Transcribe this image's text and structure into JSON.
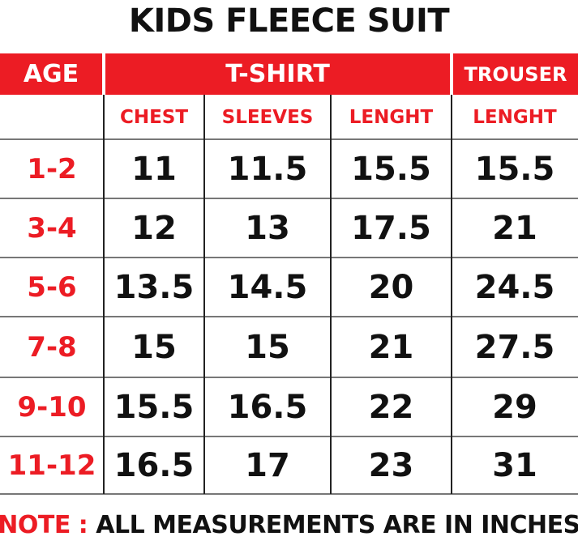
{
  "title": "KIDS FLEECE SUIT",
  "table": {
    "header": [
      "AGE",
      "T-SHIRT",
      "TROUSER"
    ],
    "subheader": [
      "CHEST",
      "SLEEVES",
      "LENGHT",
      "LENGHT"
    ],
    "rows": [
      [
        "1-2",
        "11",
        "11.5",
        "15.5",
        "15.5"
      ],
      [
        "3-4",
        "12",
        "13",
        "17.5",
        "21"
      ],
      [
        "5-6",
        "13.5",
        "14.5",
        "20",
        "24.5"
      ],
      [
        "7-8",
        "15",
        "15",
        "21",
        "27.5"
      ],
      [
        "9-10",
        "15.5",
        "16.5",
        "22",
        "29"
      ],
      [
        "11-12",
        "16.5",
        "17",
        "23",
        "31"
      ]
    ]
  },
  "note": {
    "label": "NOTE :",
    "text": "ALL MEASUREMENTS ARE IN INCHES"
  }
}
